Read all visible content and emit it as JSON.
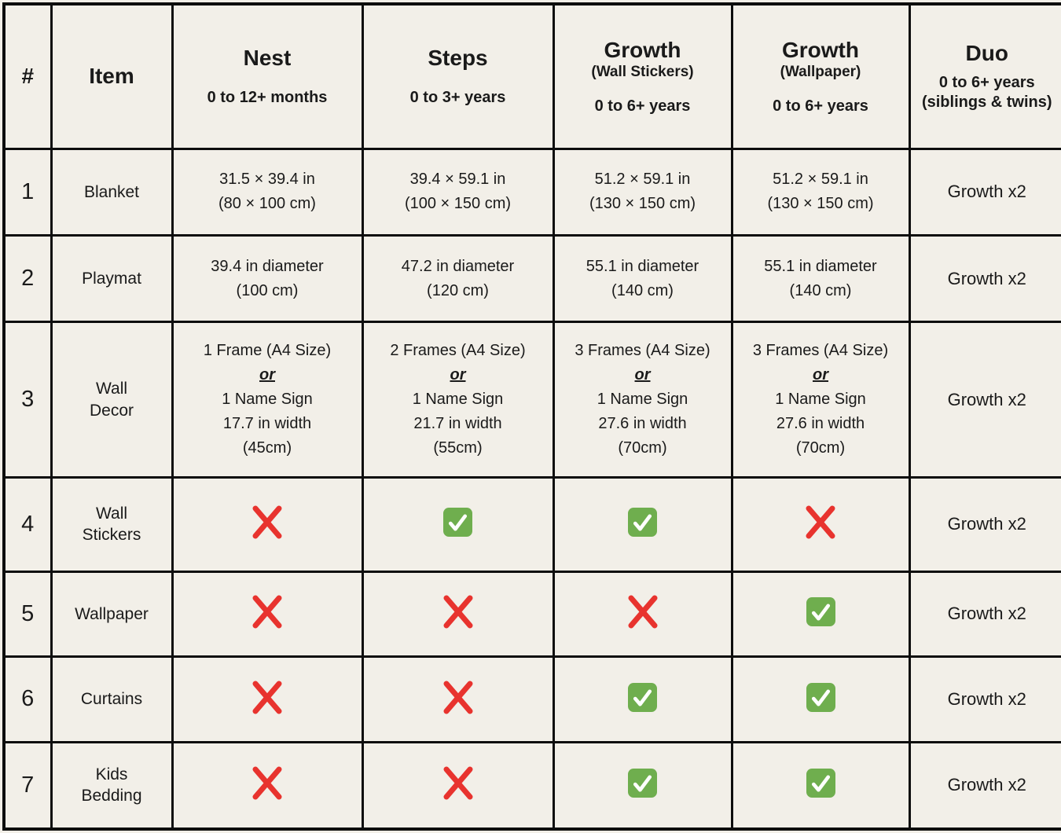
{
  "page": {
    "background": "#f2efe8",
    "border_color": "#0d0d0d",
    "text_color": "#1a1a1a"
  },
  "icons": {
    "check_color": "#6fae4e",
    "check_mark_color": "#ffffff",
    "cross_color": "#e8332e"
  },
  "header": {
    "num_label": "#",
    "item_label": "Item",
    "products": [
      {
        "title": "Nest",
        "subtitle": "",
        "age": "0 to 12+ months",
        "gap": "big"
      },
      {
        "title": "Steps",
        "subtitle": "",
        "age": "0 to 3+ years",
        "gap": "big"
      },
      {
        "title": "Growth",
        "subtitle": "(Wall Stickers)",
        "age": "0 to 6+ years",
        "gap": "mid"
      },
      {
        "title": "Growth",
        "subtitle": "(Wallpaper)",
        "age": "0 to 6+ years",
        "gap": "mid"
      },
      {
        "title": "Duo",
        "subtitle": "",
        "age": "0 to 6+ years (siblings & twins)",
        "gap": "small"
      }
    ]
  },
  "rows": [
    {
      "num": "1",
      "item": "Blanket",
      "cells": [
        {
          "kind": "lines",
          "lines": [
            "31.5 × 39.4 in",
            "(80 × 100 cm)"
          ]
        },
        {
          "kind": "lines",
          "lines": [
            "39.4 × 59.1 in",
            "(100 × 150 cm)"
          ]
        },
        {
          "kind": "lines",
          "lines": [
            "51.2 × 59.1 in",
            "(130 × 150 cm)"
          ]
        },
        {
          "kind": "lines",
          "lines": [
            "51.2 × 59.1 in",
            "(130 × 150 cm)"
          ]
        },
        {
          "kind": "lines",
          "lines": [
            "Growth x2"
          ]
        }
      ]
    },
    {
      "num": "2",
      "item": "Playmat",
      "cells": [
        {
          "kind": "lines",
          "lines": [
            "39.4 in diameter",
            "(100 cm)"
          ]
        },
        {
          "kind": "lines",
          "lines": [
            "47.2 in diameter",
            "(120 cm)"
          ]
        },
        {
          "kind": "lines",
          "lines": [
            "55.1 in diameter",
            "(140 cm)"
          ]
        },
        {
          "kind": "lines",
          "lines": [
            "55.1 in diameter",
            "(140 cm)"
          ]
        },
        {
          "kind": "lines",
          "lines": [
            "Growth x2"
          ]
        }
      ]
    },
    {
      "num": "3",
      "item": "Wall Decor",
      "cells": [
        {
          "kind": "lines",
          "lines": [
            "1 Frame (A4 Size)",
            {
              "text": "or",
              "emphasis": true
            },
            "1 Name Sign",
            "17.7 in width",
            "(45cm)"
          ]
        },
        {
          "kind": "lines",
          "lines": [
            "2 Frames (A4 Size)",
            {
              "text": "or",
              "emphasis": true
            },
            "1 Name Sign",
            "21.7 in width",
            "(55cm)"
          ]
        },
        {
          "kind": "lines",
          "lines": [
            "3 Frames (A4 Size)",
            {
              "text": "or",
              "emphasis": true
            },
            "1 Name Sign",
            "27.6 in width",
            "(70cm)"
          ]
        },
        {
          "kind": "lines",
          "lines": [
            "3 Frames (A4 Size)",
            {
              "text": "or",
              "emphasis": true
            },
            "1 Name Sign",
            "27.6 in width",
            "(70cm)"
          ]
        },
        {
          "kind": "lines",
          "lines": [
            "Growth x2"
          ]
        }
      ]
    },
    {
      "num": "4",
      "item": "Wall Stickers",
      "cells": [
        {
          "kind": "cross"
        },
        {
          "kind": "check"
        },
        {
          "kind": "check"
        },
        {
          "kind": "cross"
        },
        {
          "kind": "lines",
          "lines": [
            "Growth x2"
          ]
        }
      ]
    },
    {
      "num": "5",
      "item": "Wallpaper",
      "cells": [
        {
          "kind": "cross"
        },
        {
          "kind": "cross"
        },
        {
          "kind": "cross"
        },
        {
          "kind": "check"
        },
        {
          "kind": "lines",
          "lines": [
            "Growth x2"
          ]
        }
      ]
    },
    {
      "num": "6",
      "item": "Curtains",
      "cells": [
        {
          "kind": "cross"
        },
        {
          "kind": "cross"
        },
        {
          "kind": "check"
        },
        {
          "kind": "check"
        },
        {
          "kind": "lines",
          "lines": [
            "Growth x2"
          ]
        }
      ]
    },
    {
      "num": "7",
      "item": "Kids Bedding",
      "cells": [
        {
          "kind": "cross"
        },
        {
          "kind": "cross"
        },
        {
          "kind": "check"
        },
        {
          "kind": "check"
        },
        {
          "kind": "lines",
          "lines": [
            "Growth x2"
          ]
        }
      ]
    }
  ]
}
